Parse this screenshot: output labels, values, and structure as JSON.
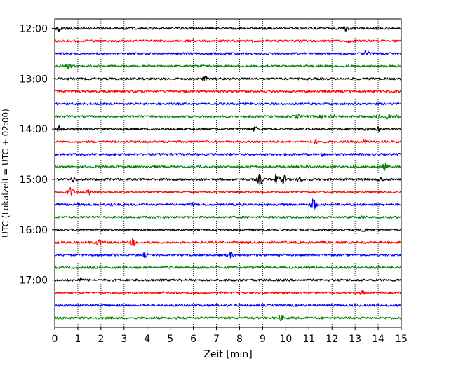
{
  "chart_data": {
    "type": "line",
    "title": "",
    "xlabel": "Zeit  [min]",
    "ylabel": "UTC (Lokalzeit = UTC + 02:00)",
    "xlim": [
      0,
      15
    ],
    "x_ticks": [
      "0",
      "1",
      "2",
      "3",
      "4",
      "5",
      "6",
      "7",
      "8",
      "9",
      "10",
      "11",
      "12",
      "13",
      "14",
      "15"
    ],
    "y_ticks": [
      "12:00",
      "13:00",
      "14:00",
      "15:00",
      "16:00",
      "17:00"
    ],
    "y_tick_times": [
      "12:00",
      "13:00",
      "14:00",
      "15:00",
      "16:00",
      "17:00"
    ],
    "grid": {
      "vertical": true,
      "horizontal": false,
      "style": "dotted"
    },
    "trace_interval_minutes": 15,
    "trace_colors": [
      "#000000",
      "#ff0000",
      "#0000ff",
      "#008000"
    ],
    "series": [
      {
        "start": "12:00",
        "color": "#000000",
        "events": [
          [
            0.15,
            2.0
          ],
          [
            12.6,
            1.5
          ],
          [
            14.0,
            1.2
          ]
        ]
      },
      {
        "start": "12:15",
        "color": "#ff0000",
        "events": [
          [
            12.7,
            1.4
          ]
        ]
      },
      {
        "start": "12:30",
        "color": "#0000ff",
        "events": [
          [
            13.5,
            2.5
          ],
          [
            12.5,
            1.5
          ]
        ]
      },
      {
        "start": "12:45",
        "color": "#008000",
        "events": [
          [
            0.6,
            2.0
          ]
        ]
      },
      {
        "start": "13:00",
        "color": "#000000",
        "events": [
          [
            6.5,
            1.3
          ]
        ]
      },
      {
        "start": "13:15",
        "color": "#ff0000",
        "events": []
      },
      {
        "start": "13:30",
        "color": "#0000ff",
        "events": []
      },
      {
        "start": "13:45",
        "color": "#008000",
        "events": [
          [
            10.5,
            1.5
          ],
          [
            11.6,
            1.3
          ],
          [
            12.0,
            1.4
          ],
          [
            14.0,
            1.6
          ],
          [
            14.4,
            1.8
          ],
          [
            14.8,
            1.6
          ]
        ]
      },
      {
        "start": "14:00",
        "color": "#000000",
        "events": [
          [
            0.2,
            2.5
          ],
          [
            8.7,
            1.8
          ],
          [
            13.5,
            1.3
          ],
          [
            14.0,
            1.5
          ]
        ]
      },
      {
        "start": "14:15",
        "color": "#ff0000",
        "events": [
          [
            11.3,
            1.3
          ],
          [
            13.4,
            1.3
          ]
        ]
      },
      {
        "start": "14:30",
        "color": "#0000ff",
        "events": [
          [
            11.6,
            1.2
          ]
        ]
      },
      {
        "start": "14:45",
        "color": "#008000",
        "events": [
          [
            8.5,
            1.2
          ],
          [
            14.3,
            2.5
          ]
        ]
      },
      {
        "start": "15:00",
        "color": "#000000",
        "events": [
          [
            0.8,
            1.8
          ],
          [
            8.9,
            5.0
          ],
          [
            9.6,
            4.5
          ],
          [
            9.9,
            3.5
          ],
          [
            10.6,
            1.4
          ],
          [
            14.1,
            1.6
          ]
        ]
      },
      {
        "start": "15:15",
        "color": "#ff0000",
        "events": [
          [
            0.7,
            4.0
          ],
          [
            1.5,
            1.6
          ]
        ]
      },
      {
        "start": "15:30",
        "color": "#0000ff",
        "events": [
          [
            1.1,
            1.5
          ],
          [
            2.5,
            1.3
          ],
          [
            5.9,
            1.3
          ],
          [
            11.2,
            6.0
          ]
        ]
      },
      {
        "start": "15:45",
        "color": "#008000",
        "events": [
          [
            13.3,
            1.2
          ]
        ]
      },
      {
        "start": "16:00",
        "color": "#000000",
        "events": [
          [
            13.4,
            1.5
          ]
        ]
      },
      {
        "start": "16:15",
        "color": "#ff0000",
        "events": [
          [
            1.9,
            2.0
          ],
          [
            3.4,
            3.0
          ]
        ]
      },
      {
        "start": "16:30",
        "color": "#0000ff",
        "events": [
          [
            3.9,
            1.5
          ],
          [
            7.6,
            2.0
          ]
        ]
      },
      {
        "start": "16:45",
        "color": "#008000",
        "events": [
          [
            14.0,
            1.5
          ]
        ]
      },
      {
        "start": "17:00",
        "color": "#000000",
        "events": [
          [
            1.1,
            1.5
          ],
          [
            8.0,
            1.3
          ]
        ]
      },
      {
        "start": "17:15",
        "color": "#ff0000",
        "events": [
          [
            13.3,
            1.4
          ]
        ]
      },
      {
        "start": "17:30",
        "color": "#0000ff",
        "events": []
      },
      {
        "start": "17:45",
        "color": "#008000",
        "events": [
          [
            9.8,
            1.8
          ]
        ]
      }
    ]
  }
}
